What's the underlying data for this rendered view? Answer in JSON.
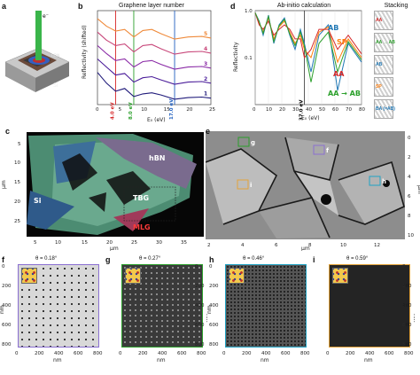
{
  "figure": {
    "panel_a": {
      "letter": "a",
      "beam_label": "e⁻",
      "lenses_label": "hBN",
      "substrate_label": "Si"
    },
    "panel_b": {
      "letter": "b",
      "title": "Graphene layer number",
      "ylabel": "Reflectivity (shifted)",
      "xlabel": "E₀ (eV)",
      "markers": [
        {
          "label": "4.0 eV",
          "value": 4.0,
          "color": "#d62728"
        },
        {
          "label": "8.0 eV",
          "value": 8.0,
          "color": "#2ca02c"
        },
        {
          "label": "17.0 eV",
          "value": 17.0,
          "color": "#1f5fbf"
        }
      ]
    },
    "panel_d": {
      "letter": "d",
      "title": "Ab-initio calculation",
      "ylabel": "Reflectivity",
      "xlabel": "E₀ (eV)",
      "marker_label": "37.0 eV",
      "curve_labels": [
        {
          "text": "AB",
          "color": "#1f77b4"
        },
        {
          "text": "SP",
          "color": "#ff7f0e"
        },
        {
          "text": "AA",
          "color": "#d62728"
        },
        {
          "text": "AA → AB",
          "color": "#2ca02c"
        }
      ],
      "stacking_title": "Stacking",
      "stacking": [
        {
          "label": "AA",
          "color": "#d62728"
        },
        {
          "label": "AA → AB",
          "color": "#2ca02c"
        },
        {
          "label": "AB",
          "color": "#1f77b4"
        },
        {
          "label": "SP",
          "color": "#ff7f0e"
        },
        {
          "label": "BA (=AB)",
          "color": "#1f77b4"
        }
      ]
    },
    "panel_c": {
      "letter": "c",
      "ylabel": "μm",
      "xlabel": "μm",
      "labels": {
        "hbn": "hBN",
        "tbg": "TBG",
        "si": "Si",
        "mlg": "MLG"
      }
    },
    "panel_e": {
      "letter": "e",
      "ylabel": "μm",
      "xlabel": "μm",
      "boxes": [
        {
          "label": "g",
          "color": "#2ca02c"
        },
        {
          "label": "f",
          "color": "#8a6fd1"
        },
        {
          "label": "i",
          "color": "#e3a33a"
        },
        {
          "label": "h",
          "color": "#1fa3c4"
        }
      ]
    },
    "insets": [
      {
        "letter": "f",
        "theta": "θ = 0.18°",
        "border": "#8a6fd1"
      },
      {
        "letter": "g",
        "theta": "θ = 0.27°",
        "border": "#2ca02c"
      },
      {
        "letter": "h",
        "theta": "θ = 0.46°",
        "border": "#1fa3c4"
      },
      {
        "letter": "i",
        "theta": "θ = 0.59°",
        "border": "#e3a33a"
      }
    ],
    "inset_axis": {
      "xlabel": "nm",
      "ylabel": "nm",
      "ticks": [
        "0",
        "200",
        "400",
        "600",
        "800"
      ]
    }
  },
  "chart_data": [
    {
      "type": "line",
      "title": "Graphene layer number",
      "xlabel": "E₀ (eV)",
      "ylabel": "Reflectivity (shifted)",
      "xlim": [
        0,
        25
      ],
      "x": [
        0,
        2,
        4,
        6,
        8,
        10,
        12,
        14,
        17,
        20,
        23,
        25
      ],
      "series": [
        {
          "name": "1",
          "color": "#1f1a7a",
          "values": [
            0.8,
            0.6,
            0.45,
            0.5,
            0.35,
            0.4,
            0.42,
            0.38,
            0.3,
            0.33,
            0.34,
            0.32
          ]
        },
        {
          "name": "2",
          "color": "#4b1d9a",
          "values": [
            1.05,
            0.9,
            0.75,
            0.78,
            0.62,
            0.7,
            0.72,
            0.66,
            0.58,
            0.62,
            0.63,
            0.6
          ]
        },
        {
          "name": "3",
          "color": "#8a2aa6",
          "values": [
            1.3,
            1.15,
            1.02,
            1.05,
            0.9,
            1.0,
            1.02,
            0.95,
            0.86,
            0.9,
            0.91,
            0.88
          ]
        },
        {
          "name": "4",
          "color": "#c8477a",
          "values": [
            1.55,
            1.4,
            1.3,
            1.33,
            1.18,
            1.3,
            1.32,
            1.24,
            1.14,
            1.18,
            1.19,
            1.16
          ]
        },
        {
          "name": "5",
          "color": "#ef8a3a",
          "values": [
            1.8,
            1.66,
            1.57,
            1.6,
            1.46,
            1.58,
            1.6,
            1.52,
            1.42,
            1.46,
            1.47,
            1.44
          ]
        }
      ]
    },
    {
      "type": "line",
      "title": "Ab-initio calculation",
      "xlabel": "E₀ (eV)",
      "ylabel": "Reflectivity",
      "xlim": [
        0,
        80
      ],
      "ylim": [
        0.01,
        1.0
      ],
      "yscale": "log",
      "x": [
        0,
        3,
        6,
        10,
        14,
        18,
        22,
        26,
        30,
        34,
        37,
        42,
        48,
        55,
        62,
        70,
        80
      ],
      "series": [
        {
          "name": "AB",
          "color": "#1f77b4",
          "values": [
            0.9,
            0.6,
            0.3,
            0.8,
            0.2,
            0.5,
            0.7,
            0.3,
            0.15,
            0.4,
            0.2,
            0.05,
            0.3,
            0.5,
            0.02,
            0.2,
            0.08
          ]
        },
        {
          "name": "SP",
          "color": "#ff7f0e",
          "values": [
            0.9,
            0.55,
            0.35,
            0.7,
            0.25,
            0.45,
            0.6,
            0.35,
            0.2,
            0.3,
            0.15,
            0.1,
            0.35,
            0.45,
            0.08,
            0.25,
            0.1
          ]
        },
        {
          "name": "AA",
          "color": "#d62728",
          "values": [
            0.9,
            0.5,
            0.4,
            0.6,
            0.3,
            0.4,
            0.5,
            0.4,
            0.25,
            0.25,
            0.1,
            0.15,
            0.4,
            0.4,
            0.15,
            0.3,
            0.12
          ]
        },
        {
          "name": "AA → AB",
          "color": "#2ca02c",
          "values": [
            0.9,
            0.58,
            0.33,
            0.75,
            0.22,
            0.48,
            0.65,
            0.32,
            0.18,
            0.35,
            0.18,
            0.03,
            0.2,
            0.35,
            0.05,
            0.22,
            0.09
          ]
        }
      ]
    }
  ]
}
